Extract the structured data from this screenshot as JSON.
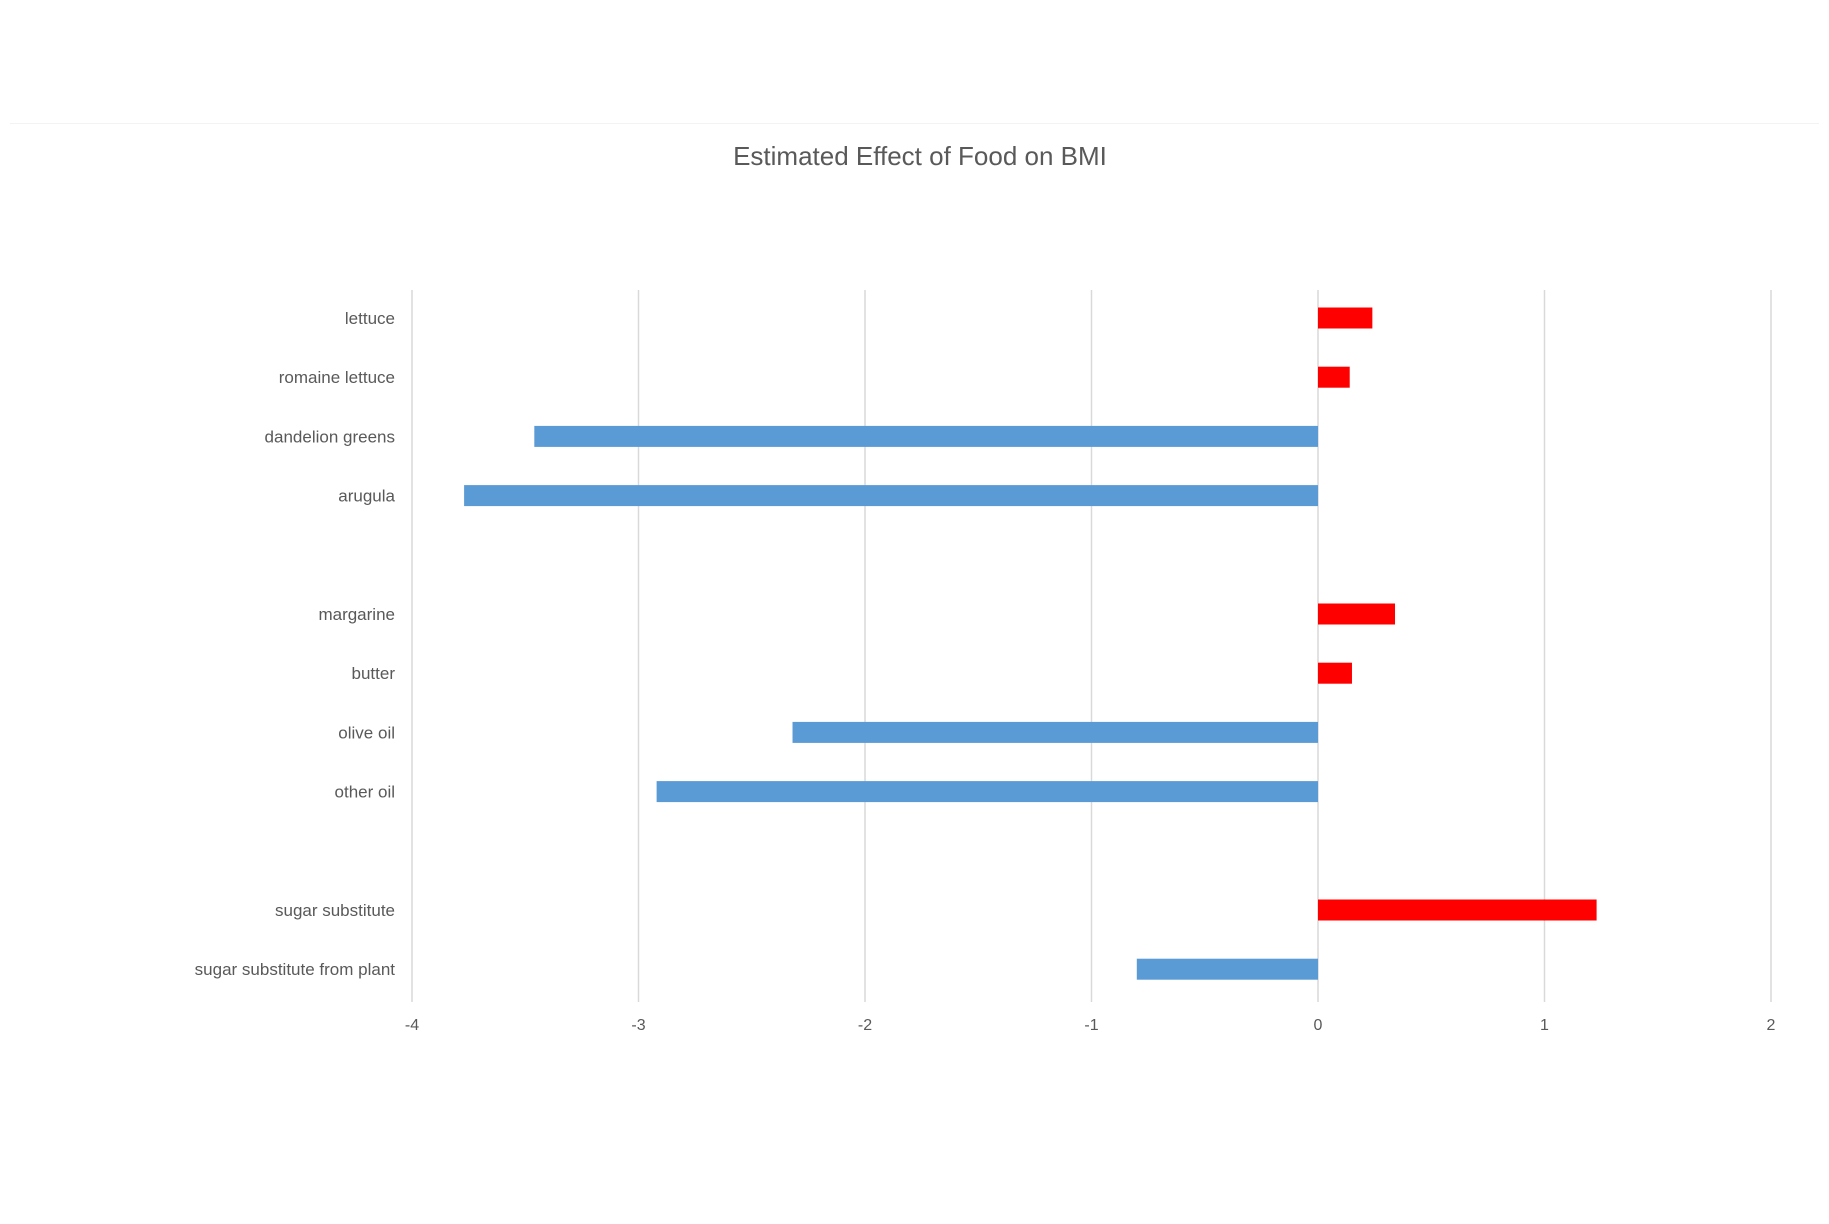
{
  "chart_data": {
    "type": "bar",
    "orientation": "horizontal",
    "title": "Estimated Effect of Food on BMI",
    "xlabel": "",
    "ylabel": "",
    "xlim": [
      -4,
      2
    ],
    "x_ticks": [
      "-4",
      "-3",
      "-2",
      "-1",
      "0",
      "1",
      "2"
    ],
    "grid": true,
    "legend": "none",
    "categories": [
      "lettuce",
      "romaine lettuce",
      "dandelion greens",
      "arugula",
      "",
      "margarine",
      "butter",
      "olive oil",
      "other oil",
      "",
      "sugar substitute",
      "sugar substitute from plant"
    ],
    "values": [
      0.24,
      0.14,
      -3.46,
      -3.77,
      null,
      0.34,
      0.15,
      -2.32,
      -2.92,
      null,
      1.23,
      -0.8
    ],
    "colors": {
      "positive": "#ff0000",
      "negative": "#5b9bd5",
      "gridline": "#d9d9d9",
      "text": "#595959",
      "title": "#595959"
    }
  }
}
